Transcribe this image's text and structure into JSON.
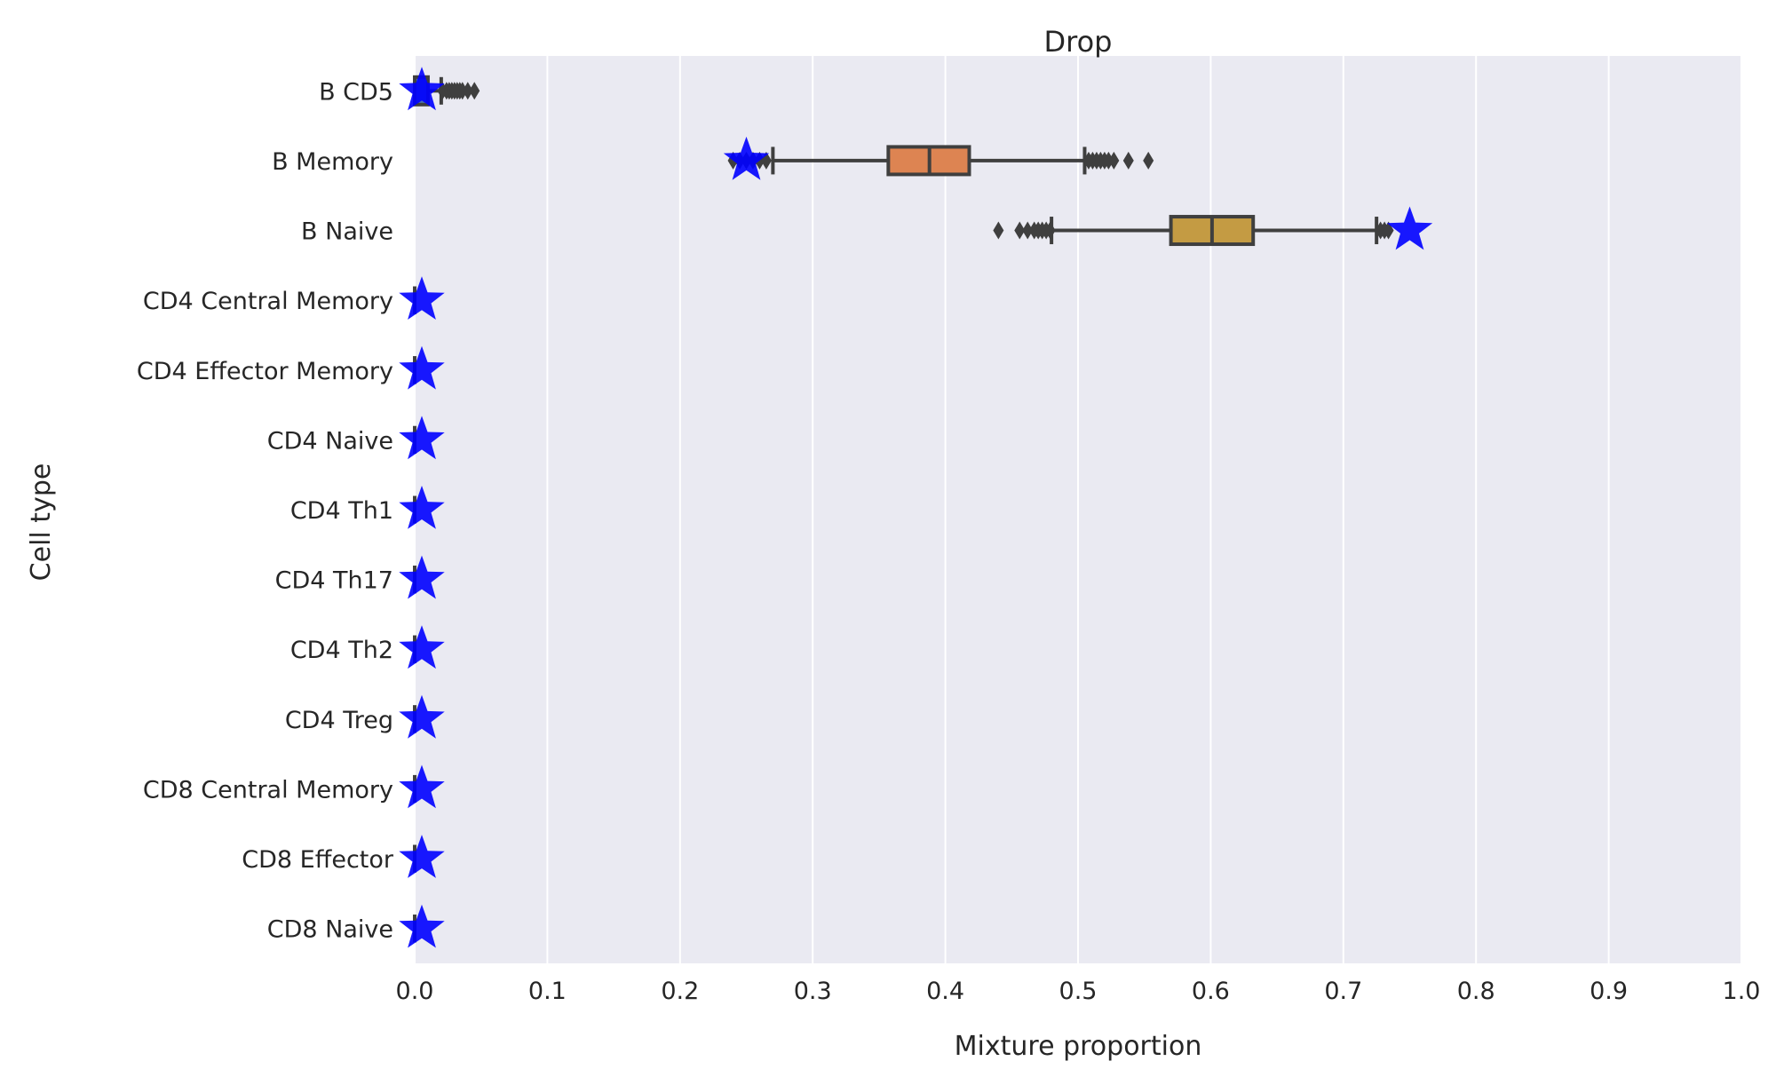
{
  "chart_data": {
    "type": "box",
    "orientation": "horizontal",
    "title": "Drop",
    "xlabel": "Mixture proportion",
    "ylabel": "Cell type",
    "xlim": [
      0.0,
      1.0
    ],
    "xticks": [
      "0.0",
      "0.1",
      "0.2",
      "0.3",
      "0.4",
      "0.5",
      "0.6",
      "0.7",
      "0.8",
      "0.9",
      "1.0"
    ],
    "grid": true,
    "colors": {
      "background": "#eaeaf2",
      "grid": "#ffffff",
      "box_line": "#3f3f3f",
      "star": "#0000ff"
    },
    "categories": [
      "B CD5",
      "B Memory",
      "B Naive",
      "CD4 Central Memory",
      "CD4 Effector Memory",
      "CD4 Naive",
      "CD4 Th1",
      "CD4 Th17",
      "CD4 Th2",
      "CD4 Treg",
      "CD8 Central Memory",
      "CD8 Effector",
      "CD8 Naive"
    ],
    "boxes": [
      {
        "category": "B CD5",
        "color": "#4c72b0",
        "q1": 0.0,
        "median": 0.0,
        "q3": 0.01,
        "whisker_low": 0.0,
        "whisker_high": 0.02,
        "outliers": [
          0.021,
          0.024,
          0.026,
          0.028,
          0.03,
          0.032,
          0.034,
          0.036,
          0.04,
          0.045
        ]
      },
      {
        "category": "B Memory",
        "color": "#dd8452",
        "q1": 0.357,
        "median": 0.388,
        "q3": 0.418,
        "whisker_low": 0.27,
        "whisker_high": 0.505,
        "outliers": [
          0.24,
          0.245,
          0.25,
          0.255,
          0.26,
          0.265,
          0.508,
          0.511,
          0.514,
          0.517,
          0.52,
          0.523,
          0.527,
          0.538,
          0.553
        ]
      },
      {
        "category": "B Naive",
        "color": "#c49b43",
        "q1": 0.57,
        "median": 0.601,
        "q3": 0.632,
        "whisker_low": 0.48,
        "whisker_high": 0.725,
        "outliers": [
          0.44,
          0.456,
          0.462,
          0.467,
          0.47,
          0.473,
          0.476,
          0.479,
          0.728,
          0.731,
          0.734
        ]
      },
      {
        "category": "CD4 Central Memory",
        "color": "#3f3f3f",
        "q1": 0.0,
        "median": 0.0,
        "q3": 0.0,
        "whisker_low": 0.0,
        "whisker_high": 0.0,
        "outliers": []
      },
      {
        "category": "CD4 Effector Memory",
        "color": "#3f3f3f",
        "q1": 0.0,
        "median": 0.0,
        "q3": 0.0,
        "whisker_low": 0.0,
        "whisker_high": 0.0,
        "outliers": []
      },
      {
        "category": "CD4 Naive",
        "color": "#3f3f3f",
        "q1": 0.0,
        "median": 0.0,
        "q3": 0.0,
        "whisker_low": 0.0,
        "whisker_high": 0.0,
        "outliers": []
      },
      {
        "category": "CD4 Th1",
        "color": "#3f3f3f",
        "q1": 0.0,
        "median": 0.0,
        "q3": 0.0,
        "whisker_low": 0.0,
        "whisker_high": 0.0,
        "outliers": []
      },
      {
        "category": "CD4 Th17",
        "color": "#3f3f3f",
        "q1": 0.0,
        "median": 0.0,
        "q3": 0.0,
        "whisker_low": 0.0,
        "whisker_high": 0.0,
        "outliers": []
      },
      {
        "category": "CD4 Th2",
        "color": "#3f3f3f",
        "q1": 0.0,
        "median": 0.0,
        "q3": 0.0,
        "whisker_low": 0.0,
        "whisker_high": 0.0,
        "outliers": []
      },
      {
        "category": "CD4 Treg",
        "color": "#3f3f3f",
        "q1": 0.0,
        "median": 0.0,
        "q3": 0.0,
        "whisker_low": 0.0,
        "whisker_high": 0.0,
        "outliers": []
      },
      {
        "category": "CD8 Central Memory",
        "color": "#3f3f3f",
        "q1": 0.0,
        "median": 0.0,
        "q3": 0.0,
        "whisker_low": 0.0,
        "whisker_high": 0.0,
        "outliers": []
      },
      {
        "category": "CD8 Effector",
        "color": "#3f3f3f",
        "q1": 0.0,
        "median": 0.0,
        "q3": 0.0,
        "whisker_low": 0.0,
        "whisker_high": 0.0,
        "outliers": []
      },
      {
        "category": "CD8 Naive",
        "color": "#3f3f3f",
        "q1": 0.0,
        "median": 0.0,
        "q3": 0.0,
        "whisker_low": 0.0,
        "whisker_high": 0.0,
        "outliers": []
      }
    ],
    "true_values": [
      {
        "category": "B CD5",
        "value": 0.0
      },
      {
        "category": "B Memory",
        "value": 0.25
      },
      {
        "category": "B Naive",
        "value": 0.75
      },
      {
        "category": "CD4 Central Memory",
        "value": 0.0
      },
      {
        "category": "CD4 Effector Memory",
        "value": 0.0
      },
      {
        "category": "CD4 Naive",
        "value": 0.0
      },
      {
        "category": "CD4 Th1",
        "value": 0.0
      },
      {
        "category": "CD4 Th17",
        "value": 0.0
      },
      {
        "category": "CD4 Th2",
        "value": 0.0
      },
      {
        "category": "CD4 Treg",
        "value": 0.0
      },
      {
        "category": "CD8 Central Memory",
        "value": 0.0
      },
      {
        "category": "CD8 Effector",
        "value": 0.0
      },
      {
        "category": "CD8 Naive",
        "value": 0.0
      }
    ]
  }
}
